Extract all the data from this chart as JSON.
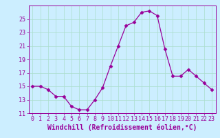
{
  "x": [
    0,
    1,
    2,
    3,
    4,
    5,
    6,
    7,
    8,
    9,
    10,
    11,
    12,
    13,
    14,
    15,
    16,
    17,
    18,
    19,
    20,
    21,
    22,
    23
  ],
  "y": [
    15,
    15,
    14.5,
    13.5,
    13.5,
    12,
    11.5,
    11.5,
    13,
    14.8,
    18,
    21,
    24,
    24.5,
    26,
    26.2,
    25.5,
    20.5,
    16.5,
    16.5,
    17.5,
    16.5,
    15.5,
    14.5
  ],
  "line_color": "#990099",
  "marker": "D",
  "marker_size": 2.5,
  "bg_color": "#cceeff",
  "grid_color": "#aaddcc",
  "xlabel": "Windchill (Refroidissement éolien,°C)",
  "xlabel_fontsize": 7,
  "xlabel_color": "#990099",
  "ylim": [
    11,
    27
  ],
  "xlim": [
    -0.5,
    23.5
  ],
  "yticks": [
    11,
    13,
    15,
    17,
    19,
    21,
    23,
    25
  ],
  "xticks": [
    0,
    1,
    2,
    3,
    4,
    5,
    6,
    7,
    8,
    9,
    10,
    11,
    12,
    13,
    14,
    15,
    16,
    17,
    18,
    19,
    20,
    21,
    22,
    23
  ],
  "tick_fontsize": 6,
  "tick_color": "#990099"
}
